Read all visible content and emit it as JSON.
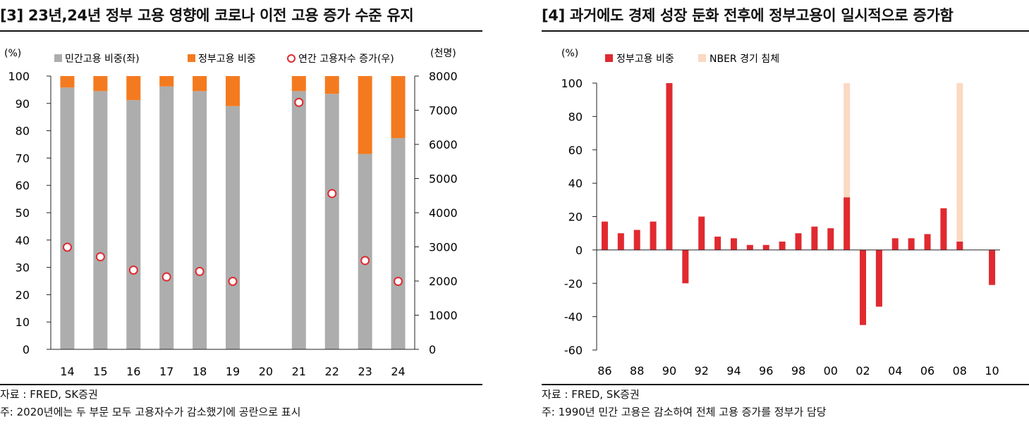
{
  "chart_data": [
    {
      "type": "bar",
      "title": "[3] 23년,24년 정부 고용 영향에 코로나 이전 고용 증가 수준 유지",
      "unit_left": "(%)",
      "unit_right": "(천명)",
      "categories": [
        "14",
        "15",
        "16",
        "17",
        "18",
        "19",
        "20",
        "21",
        "22",
        "23",
        "24"
      ],
      "series": [
        {
          "name": "민간고용 비중(좌)",
          "type": "bar",
          "color": "#adadad",
          "values": [
            95.8,
            94.5,
            91.2,
            96.2,
            94.5,
            89.0,
            null,
            94.5,
            93.5,
            71.5,
            77.3
          ]
        },
        {
          "name": "정부고용 비중",
          "type": "bar",
          "color": "#f47a20",
          "values": [
            4.2,
            5.5,
            8.8,
            3.8,
            5.5,
            11.0,
            null,
            5.5,
            6.5,
            28.5,
            22.7
          ]
        },
        {
          "name": "연간 고용자수 증가(우)",
          "type": "scatter",
          "color": "#e02a30",
          "values": [
            2990,
            2710,
            2320,
            2120,
            2280,
            1990,
            null,
            7230,
            4560,
            2600,
            1990
          ]
        }
      ],
      "ylim_left": [
        0,
        100
      ],
      "ylim_right": [
        0,
        8000
      ],
      "yticks_left": [
        "0",
        "10",
        "20",
        "30",
        "40",
        "50",
        "60",
        "70",
        "80",
        "90",
        "100"
      ],
      "yticks_right": [
        "0",
        "1000",
        "2000",
        "3000",
        "4000",
        "5000",
        "6000",
        "7000",
        "8000"
      ],
      "legend": "top",
      "grid": false,
      "source": "자료 : FRED, SK증권",
      "note": "주: 2020년에는 두 부문 모두 고용자수가 감소했기에 공란으로 표시"
    },
    {
      "type": "bar",
      "title": "[4] 과거에도 경제 성장 둔화 전후에 정부고용이 일시적으로 증가함",
      "unit_left": "(%)",
      "years": [
        "86",
        "87",
        "88",
        "89",
        "90",
        "91",
        "92",
        "93",
        "94",
        "95",
        "96",
        "97",
        "98",
        "99",
        "00",
        "01",
        "02",
        "03",
        "04",
        "05",
        "06",
        "07",
        "08",
        "09",
        "10"
      ],
      "xtick_labels": [
        "86",
        "88",
        "90",
        "92",
        "94",
        "96",
        "98",
        "00",
        "02",
        "04",
        "06",
        "08",
        "10"
      ],
      "series": [
        {
          "name": "정부고용 비중",
          "type": "bar",
          "color": "#e02a30",
          "values": [
            17,
            10,
            12,
            17,
            100,
            -20,
            20,
            8,
            7,
            3,
            3,
            5,
            10,
            14,
            13,
            31.5,
            -45,
            -34,
            7,
            7,
            9.5,
            25,
            5,
            null,
            -21
          ]
        },
        {
          "name": "NBER 경기 침체",
          "type": "bar",
          "color": "#fbd9c2",
          "values": [
            null,
            null,
            null,
            null,
            null,
            null,
            null,
            null,
            null,
            null,
            null,
            null,
            null,
            null,
            null,
            100,
            null,
            null,
            null,
            null,
            null,
            null,
            100,
            null,
            null
          ]
        }
      ],
      "ylim": [
        -60,
        100
      ],
      "yticks": [
        "-60",
        "-40",
        "-20",
        "0",
        "20",
        "40",
        "60",
        "80",
        "100"
      ],
      "legend": "top",
      "grid": false,
      "source": "자료 : FRED, SK증권",
      "note": "주: 1990년 민간 고용은 감소하여 전체 고용 증가를 정부가 담당"
    }
  ]
}
